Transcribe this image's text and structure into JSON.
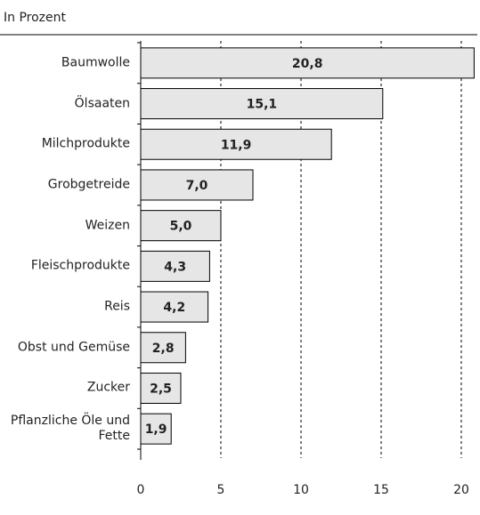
{
  "chart_data": {
    "type": "bar",
    "orientation": "horizontal",
    "title": "In Prozent",
    "categories": [
      "Baumwolle",
      "Ölsaaten",
      "Milchprodukte",
      "Grobgetreide",
      "Weizen",
      "Fleischprodukte",
      "Reis",
      "Obst und Gemüse",
      "Zucker",
      "Pflanzliche Öle und Fette"
    ],
    "values": [
      20.8,
      15.1,
      11.9,
      7.0,
      5.0,
      4.3,
      4.2,
      2.8,
      2.5,
      1.9
    ],
    "value_labels": [
      "20,8",
      "15,1",
      "11,9",
      "7,0",
      "5,0",
      "4,3",
      "4,2",
      "2,8",
      "2,5",
      "1,9"
    ],
    "color": "#e6e6e6",
    "xlim": [
      0,
      21
    ],
    "xticks": [
      0,
      5,
      10,
      15,
      20
    ],
    "grid": true
  }
}
